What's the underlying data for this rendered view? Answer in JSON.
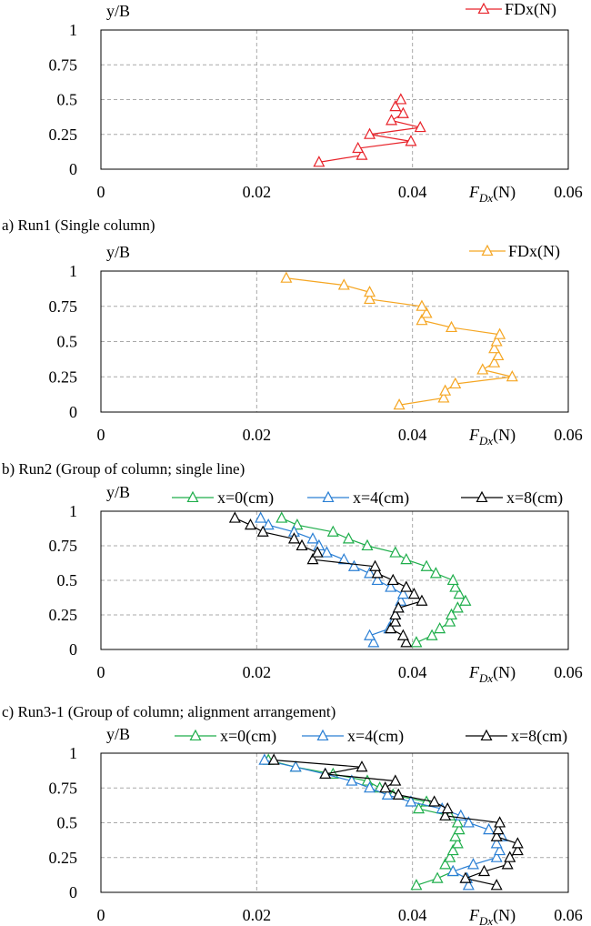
{
  "chart_data": [
    {
      "type": "line",
      "caption": "a) Run1 (Single column)",
      "ylabel": "y/B",
      "xlabel_main": "F",
      "xlabel_sub": "Dx",
      "xlabel_unit": "(N)",
      "xlim": [
        0,
        0.06
      ],
      "ylim": [
        0,
        1
      ],
      "xticks": [
        "0",
        "0.02",
        "0.04",
        "0.06"
      ],
      "yticks": [
        "0",
        "0.25",
        "0.5",
        "0.75",
        "1"
      ],
      "grid": "dashed",
      "legend_position": "top-right",
      "series": [
        {
          "name": "FDx(N)",
          "color": "#e8232a",
          "marker": "triangle",
          "x": [
            0.028,
            0.0335,
            0.033,
            0.0398,
            0.0345,
            0.041,
            0.0373,
            0.0388,
            0.0378,
            0.0385
          ],
          "y": [
            0.05,
            0.1,
            0.15,
            0.2,
            0.25,
            0.3,
            0.35,
            0.4,
            0.45,
            0.5
          ]
        }
      ]
    },
    {
      "type": "line",
      "caption": "b) Run2 (Group of column; single line)",
      "ylabel": "y/B",
      "xlabel_main": "F",
      "xlabel_sub": "Dx",
      "xlabel_unit": "(N)",
      "xlim": [
        0,
        0.06
      ],
      "ylim": [
        0,
        1
      ],
      "xticks": [
        "0",
        "0.02",
        "0.04",
        "0.06"
      ],
      "yticks": [
        "0",
        "0.25",
        "0.5",
        "0.75",
        "1"
      ],
      "grid": "dashed",
      "legend_position": "top-right",
      "series": [
        {
          "name": "FDx(N)",
          "color": "#f5a623",
          "marker": "triangle",
          "x": [
            0.0383,
            0.044,
            0.0442,
            0.0455,
            0.0528,
            0.049,
            0.0505,
            0.051,
            0.0505,
            0.0508,
            0.0512,
            0.045,
            0.0412,
            0.0418,
            0.0412,
            0.0345,
            0.0345,
            0.0312,
            0.0238
          ],
          "y": [
            0.05,
            0.1,
            0.15,
            0.2,
            0.25,
            0.3,
            0.35,
            0.4,
            0.45,
            0.5,
            0.55,
            0.6,
            0.65,
            0.7,
            0.75,
            0.8,
            0.85,
            0.9,
            0.95
          ]
        }
      ]
    },
    {
      "type": "line",
      "caption": "c) Run3-1 (Group of column; alignment arrangement)",
      "ylabel": "y/B",
      "xlabel_main": "F",
      "xlabel_sub": "Dx",
      "xlabel_unit": "(N)",
      "xlim": [
        0,
        0.06
      ],
      "ylim": [
        0,
        1
      ],
      "xticks": [
        "0",
        "0.02",
        "0.04",
        "0.06"
      ],
      "yticks": [
        "0",
        "0.25",
        "0.5",
        "0.75",
        "1"
      ],
      "grid": "dashed",
      "legend_position": "top",
      "series": [
        {
          "name": "x=0(cm)",
          "color": "#1fae4b",
          "marker": "triangle",
          "x": [
            0.0405,
            0.0425,
            0.0435,
            0.0448,
            0.045,
            0.0458,
            0.0468,
            0.046,
            0.0455,
            0.0452,
            0.043,
            0.0418,
            0.0392,
            0.0378,
            0.0342,
            0.0318,
            0.0298,
            0.0252,
            0.0232
          ],
          "y": [
            0.05,
            0.1,
            0.15,
            0.2,
            0.25,
            0.3,
            0.35,
            0.4,
            0.45,
            0.5,
            0.55,
            0.6,
            0.65,
            0.7,
            0.75,
            0.8,
            0.85,
            0.9,
            0.95
          ]
        },
        {
          "name": "x=4(cm)",
          "color": "#2a7fd4",
          "marker": "triangle",
          "x": [
            0.035,
            0.0345,
            0.037,
            0.0375,
            0.0378,
            0.0382,
            0.0385,
            0.0388,
            0.0372,
            0.0355,
            0.0345,
            0.0325,
            0.0312,
            0.029,
            0.028,
            0.0272,
            0.0248,
            0.0215,
            0.0205
          ],
          "y": [
            0.05,
            0.1,
            0.15,
            0.2,
            0.25,
            0.3,
            0.35,
            0.4,
            0.45,
            0.5,
            0.55,
            0.6,
            0.65,
            0.7,
            0.75,
            0.8,
            0.85,
            0.9,
            0.95
          ]
        },
        {
          "name": "x=8(cm)",
          "color": "#000000",
          "marker": "triangle",
          "x": [
            0.0392,
            0.0388,
            0.0372,
            0.0378,
            0.0378,
            0.0382,
            0.0412,
            0.0402,
            0.0392,
            0.0375,
            0.0355,
            0.0352,
            0.0272,
            0.0278,
            0.0258,
            0.0248,
            0.0208,
            0.0192,
            0.0172
          ],
          "y": [
            0.05,
            0.1,
            0.15,
            0.2,
            0.25,
            0.3,
            0.35,
            0.4,
            0.45,
            0.5,
            0.55,
            0.6,
            0.65,
            0.7,
            0.75,
            0.8,
            0.85,
            0.9,
            0.95
          ]
        }
      ]
    },
    {
      "type": "line",
      "caption": "",
      "ylabel": "y/B",
      "xlabel_main": "F",
      "xlabel_sub": "Dx",
      "xlabel_unit": "(N)",
      "xlim": [
        0,
        0.06
      ],
      "ylim": [
        0,
        1
      ],
      "xticks": [
        "0",
        "0.02",
        "0.04",
        "0.06"
      ],
      "yticks": [
        "0",
        "0.25",
        "0.5",
        "0.75",
        "1"
      ],
      "grid": "dashed",
      "legend_position": "top",
      "series": [
        {
          "name": "x=0(cm)",
          "color": "#1fae4b",
          "marker": "triangle",
          "x": [
            0.0405,
            0.0432,
            0.0452,
            0.0442,
            0.0448,
            0.0452,
            0.0458,
            0.0455,
            0.046,
            0.0458,
            0.0448,
            0.0408,
            0.0418,
            0.0375,
            0.0358,
            0.0342,
            0.0298,
            0.025,
            0.0215
          ],
          "y": [
            0.05,
            0.1,
            0.15,
            0.2,
            0.25,
            0.3,
            0.35,
            0.4,
            0.45,
            0.5,
            0.55,
            0.6,
            0.65,
            0.7,
            0.75,
            0.8,
            0.85,
            0.9,
            0.95
          ]
        },
        {
          "name": "x=4(cm)",
          "color": "#2a7fd4",
          "marker": "triangle",
          "x": [
            0.0472,
            0.047,
            0.0452,
            0.0478,
            0.0508,
            0.0512,
            0.0508,
            0.0515,
            0.0498,
            0.0472,
            0.0462,
            0.0438,
            0.0398,
            0.0368,
            0.0345,
            0.0322,
            0.0288,
            0.025,
            0.021
          ],
          "y": [
            0.05,
            0.1,
            0.15,
            0.2,
            0.25,
            0.3,
            0.35,
            0.4,
            0.45,
            0.5,
            0.55,
            0.6,
            0.65,
            0.7,
            0.75,
            0.8,
            0.85,
            0.9,
            0.95
          ]
        },
        {
          "name": "x=8(cm)",
          "color": "#000000",
          "marker": "triangle",
          "x": [
            0.0508,
            0.0468,
            0.0492,
            0.0522,
            0.0525,
            0.0535,
            0.0535,
            0.0508,
            0.051,
            0.0512,
            0.0442,
            0.0445,
            0.0428,
            0.0382,
            0.0365,
            0.0378,
            0.0288,
            0.0335,
            0.0222
          ],
          "y": [
            0.05,
            0.1,
            0.15,
            0.2,
            0.25,
            0.3,
            0.35,
            0.4,
            0.45,
            0.5,
            0.55,
            0.6,
            0.65,
            0.7,
            0.75,
            0.8,
            0.85,
            0.9,
            0.95
          ]
        }
      ]
    }
  ]
}
